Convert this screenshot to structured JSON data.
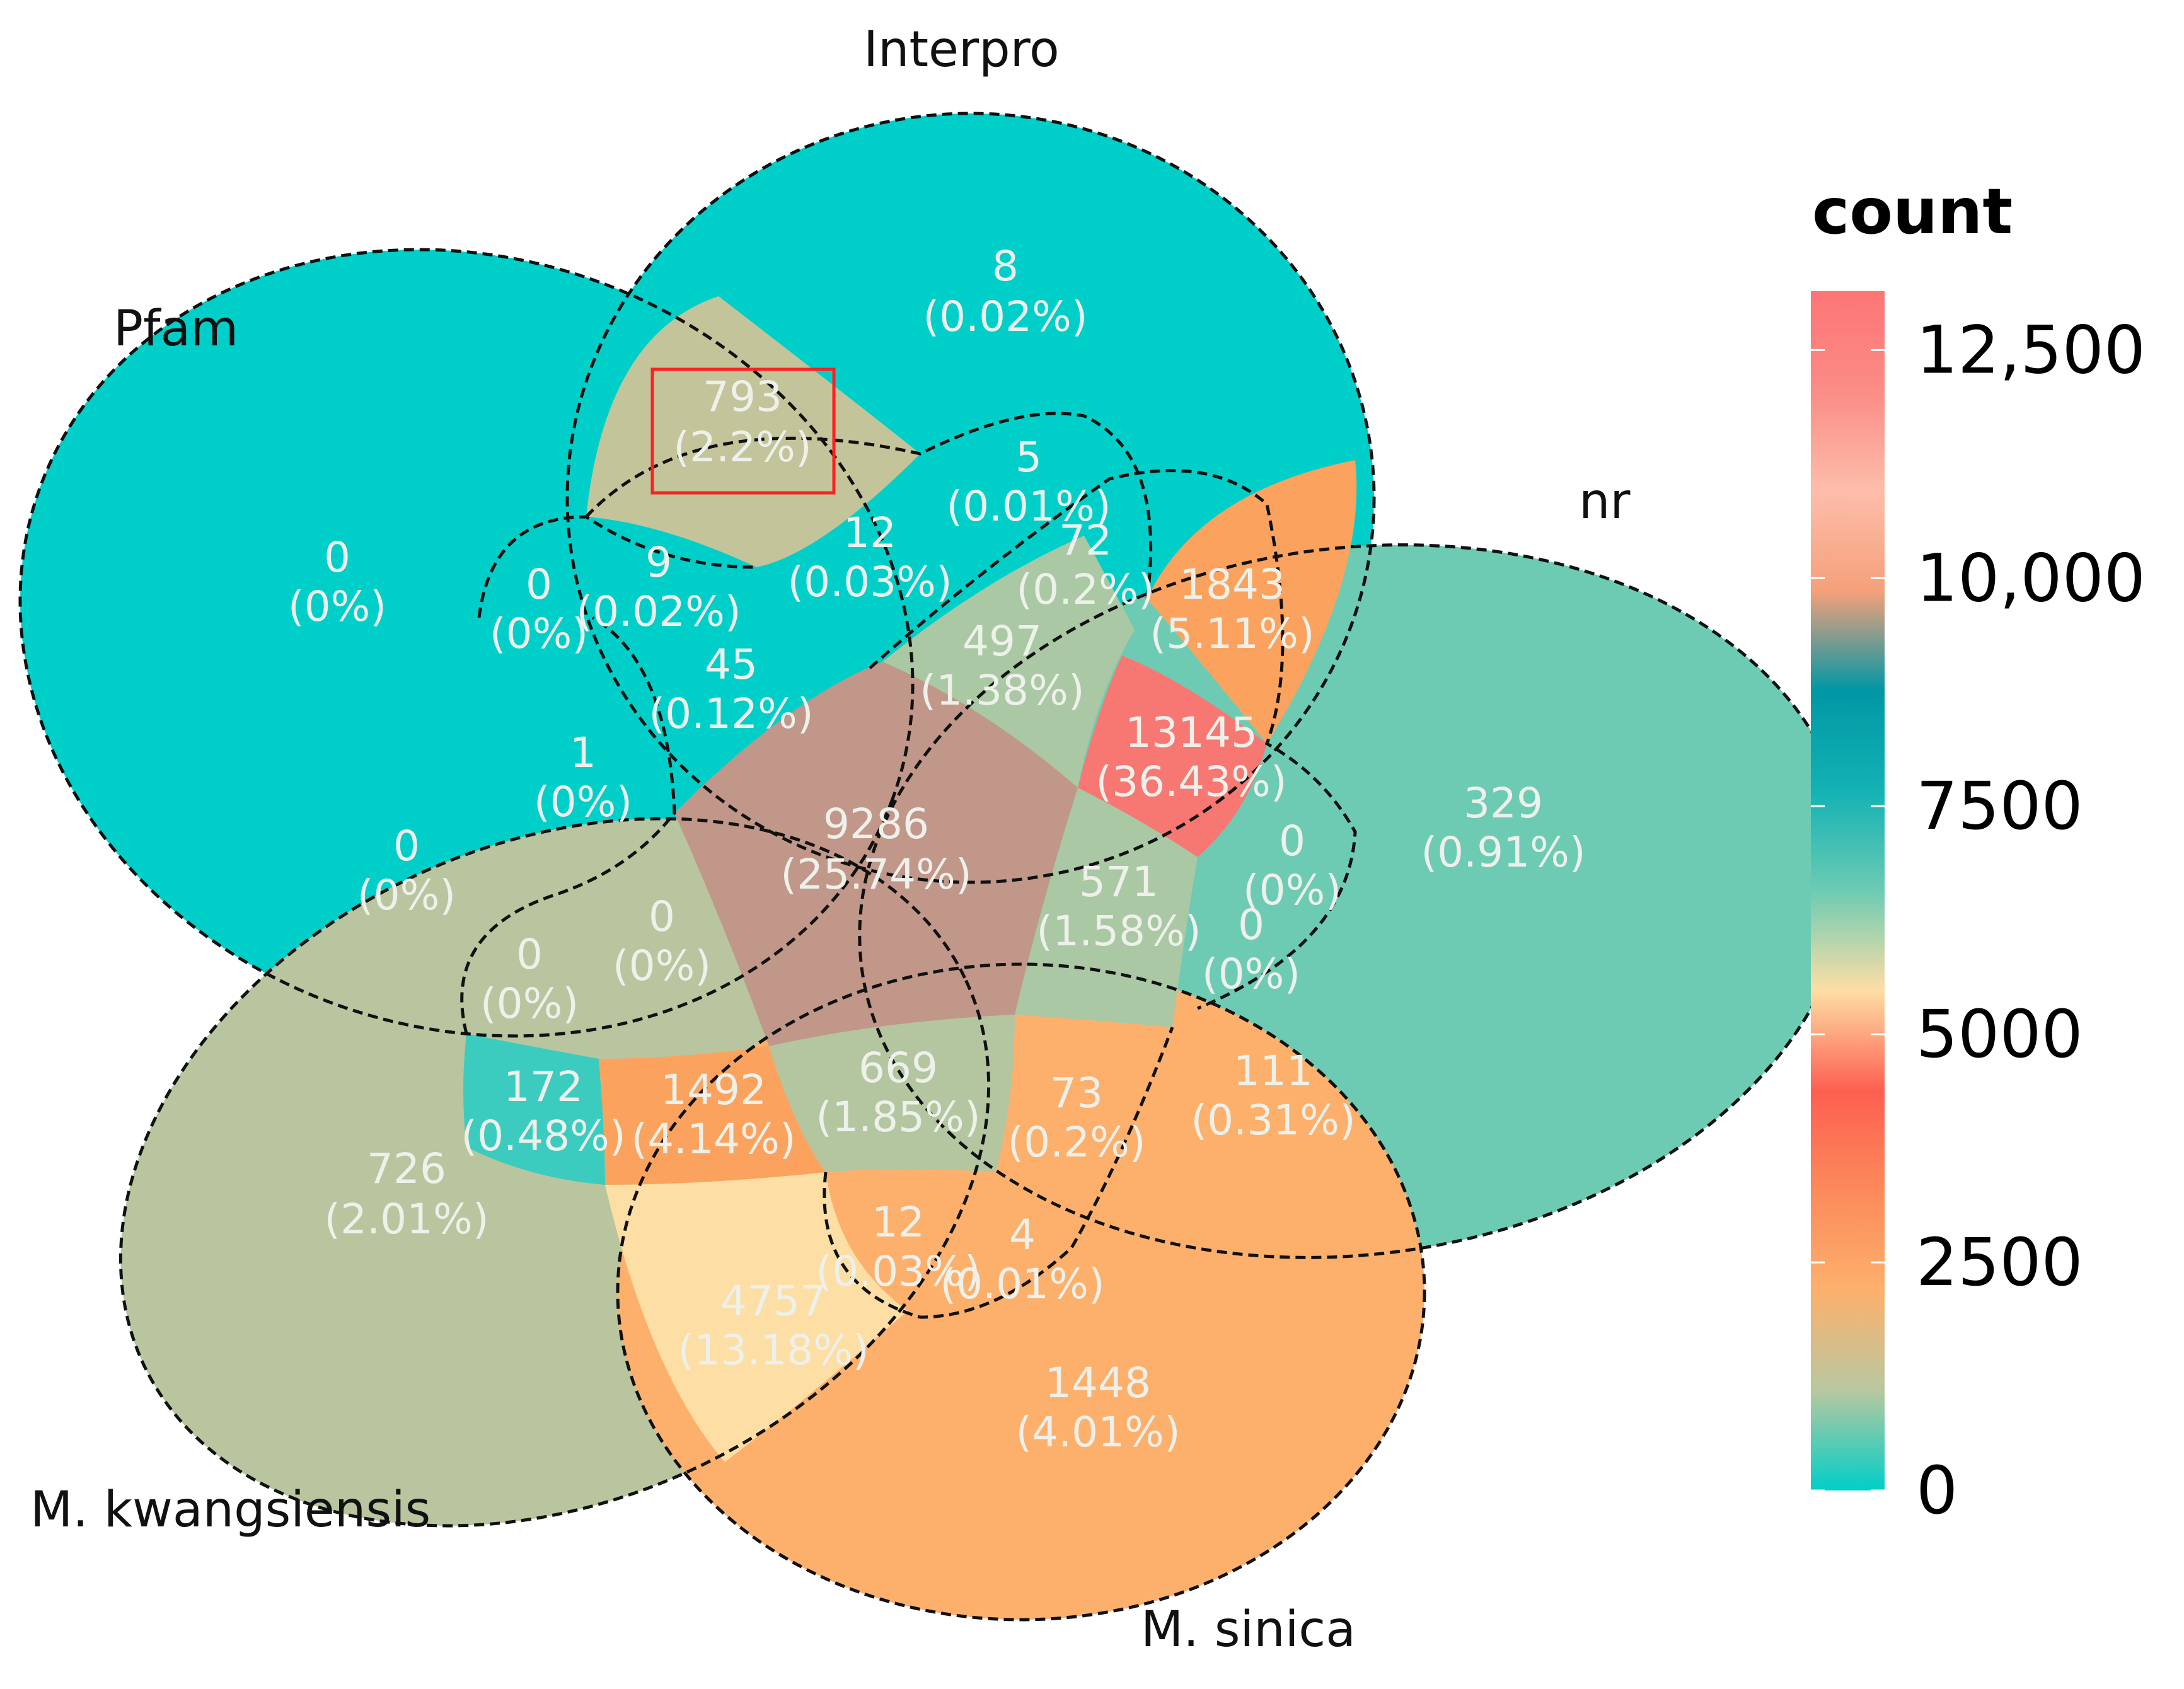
{
  "sets": [
    "Interpro",
    "Pfam",
    "nr",
    "M. kwangsiensis",
    "M. sinica"
  ],
  "regions": [
    {
      "id": "interpro-only",
      "count": "8",
      "percent": "(0.02%)",
      "color": "#00cfc9"
    },
    {
      "id": "pfam-interpro",
      "count": "793",
      "percent": "(2.2%)",
      "color": "#c3c49a",
      "highlighted": true
    },
    {
      "id": "pfam-only",
      "count": "0",
      "percent": "(0%)",
      "color": "#00cfc9"
    },
    {
      "id": "a",
      "count": "5",
      "percent": "(0.01%)",
      "color": "#00cfc9"
    },
    {
      "id": "b",
      "count": "12",
      "percent": "(0.03%)",
      "color": "#00cfc9"
    },
    {
      "id": "c",
      "count": "72",
      "percent": "(0.2%)",
      "color": "#00cfc9"
    },
    {
      "id": "d",
      "count": "1843",
      "percent": "(5.11%)",
      "color": "#fba35e"
    },
    {
      "id": "e",
      "count": "0",
      "percent": "(0%)",
      "color": "#00cfc9"
    },
    {
      "id": "f",
      "count": "9",
      "percent": "(0.02%)",
      "color": "#00cfc9"
    },
    {
      "id": "g",
      "count": "497",
      "percent": "(1.38%)",
      "color": "#a9c8a3"
    },
    {
      "id": "h",
      "count": "45",
      "percent": "(0.12%)",
      "color": "#00cfc9"
    },
    {
      "id": "i",
      "count": "13145",
      "percent": "(36.43%)",
      "color": "#f77873"
    },
    {
      "id": "nr-only",
      "count": "329",
      "percent": "(0.91%)",
      "color": "#6dcbb4"
    },
    {
      "id": "j",
      "count": "1",
      "percent": "(0%)",
      "color": "#00cfc9"
    },
    {
      "id": "k",
      "count": "9286",
      "percent": "(25.74%)",
      "color": "#c09789"
    },
    {
      "id": "l",
      "count": "0",
      "percent": "(0%)",
      "color": "#00cfc9"
    },
    {
      "id": "m",
      "count": "0",
      "percent": "(0%)",
      "color": "#00cfc9"
    },
    {
      "id": "n",
      "count": "571",
      "percent": "(1.58%)",
      "color": "#a9c8a3"
    },
    {
      "id": "o",
      "count": "0",
      "percent": "(0%)",
      "color": "#00cfc9"
    },
    {
      "id": "p",
      "count": "0",
      "percent": "(0%)",
      "color": "#00cfc9"
    },
    {
      "id": "q",
      "count": "0",
      "percent": "(0%)",
      "color": "#00cfc9"
    },
    {
      "id": "r",
      "count": "172",
      "percent": "(0.48%)",
      "color": "#3cccbf"
    },
    {
      "id": "s",
      "count": "1492",
      "percent": "(4.14%)",
      "color": "#fba35e"
    },
    {
      "id": "t",
      "count": "669",
      "percent": "(1.85%)",
      "color": "#b3c6a0"
    },
    {
      "id": "u",
      "count": "73",
      "percent": "(0.2%)",
      "color": "#00cfc9"
    },
    {
      "id": "v",
      "count": "111",
      "percent": "(0.31%)",
      "color": "#00cfc9"
    },
    {
      "id": "kwangsiensis-only",
      "count": "726",
      "percent": "(2.01%)",
      "color": "#b8c59f"
    },
    {
      "id": "w",
      "count": "12",
      "percent": "(0.03%)",
      "color": "#00cfc9"
    },
    {
      "id": "x",
      "count": "4",
      "percent": "(0.01%)",
      "color": "#00cfc9"
    },
    {
      "id": "y",
      "count": "4757",
      "percent": "(13.18%)",
      "color": "#fddea4"
    },
    {
      "id": "sinica-only",
      "count": "1448",
      "percent": "(4.01%)",
      "color": "#fdb06c"
    }
  ],
  "legend": {
    "title": "count",
    "ticks": [
      "12,500",
      "10,000",
      "7500",
      "5000",
      "2500",
      "0"
    ],
    "tick_values": [
      12500,
      10000,
      7500,
      5000,
      2500,
      0
    ],
    "max": 13145,
    "gradient": [
      "#00cfc9",
      "#b8c8a0",
      "#fdb06c",
      "#fc8a5b",
      "#fd5f50",
      "#fddea4",
      "#6dcbb4",
      "#13b2b4",
      "#0097a5",
      "#f5a07a",
      "#fdbdaa",
      "#fb8c86",
      "#fd7575"
    ]
  }
}
